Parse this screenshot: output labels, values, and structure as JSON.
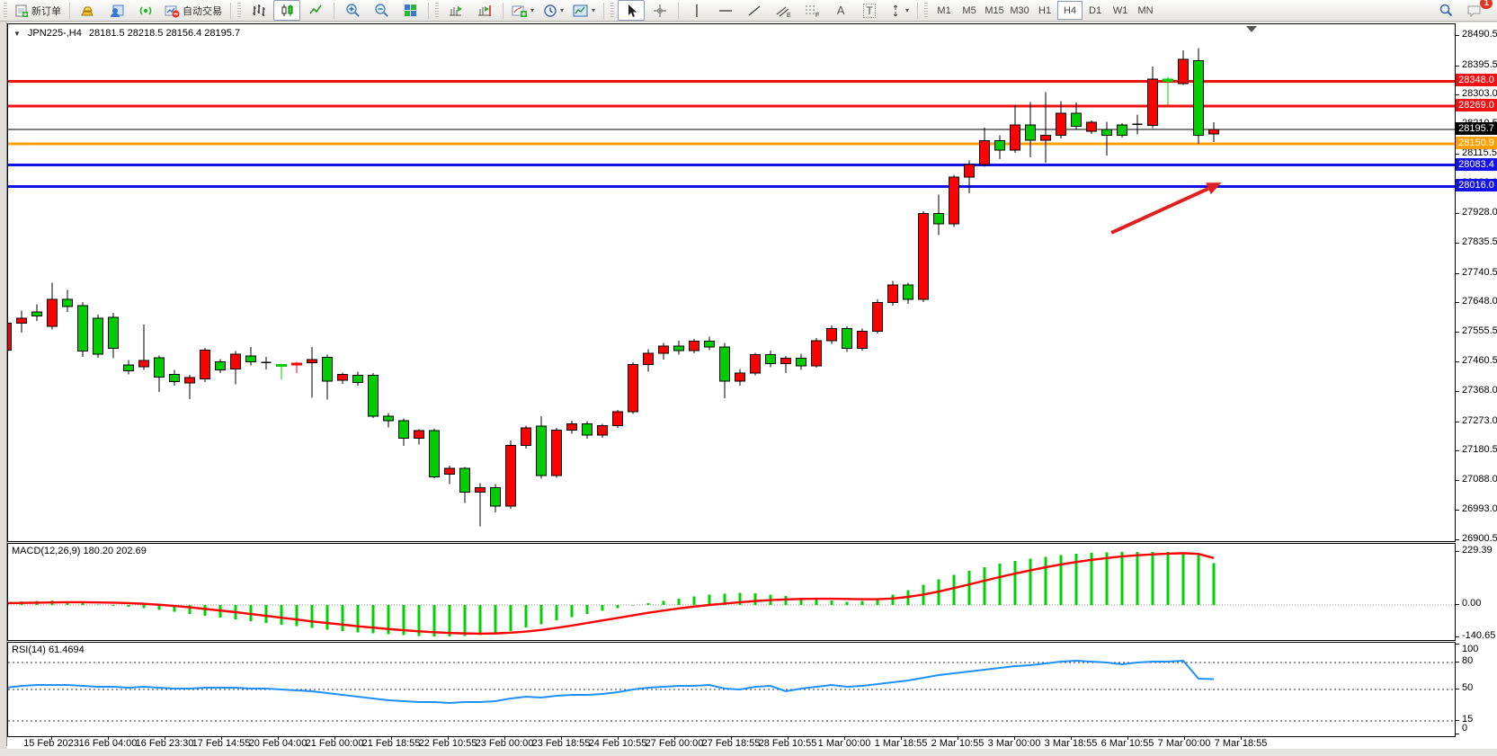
{
  "toolbar": {
    "new_order_label": "新订单",
    "auto_trading_label": "自动交易",
    "timeframes": [
      "M1",
      "M5",
      "M15",
      "M30",
      "H1",
      "H4",
      "D1",
      "W1",
      "MN"
    ],
    "active_timeframe": "H4",
    "chat_badge": "1",
    "tool_letter_text": "A",
    "tool_letter_label": "T"
  },
  "chart": {
    "symbol_period": "JPN225-,H4",
    "ohlc": "28181.5 28218.5 28156.4 28195.7"
  },
  "macd": {
    "label": "MACD(12,26,9) 180.20 202.69"
  },
  "rsi": {
    "label": "RSI(14) 61.4694"
  },
  "chart_data": {
    "type": "candlestick",
    "symbol": "JPN225-",
    "period": "H4",
    "current_price": 28195.7,
    "bull_color": "#ff0000",
    "bear_color": "#00cc00",
    "outline_color": "#000000",
    "price_axis_ticks": [
      28490.5,
      28395.5,
      28303.0,
      28210.5,
      28115.5,
      28023.0,
      27928.0,
      27835.5,
      27740.5,
      27648.0,
      27555.5,
      27460.5,
      27368.0,
      27273.0,
      27180.5,
      27088.0,
      26993.0,
      26900.5
    ],
    "horizontal_lines": [
      {
        "price": 28348.0,
        "label": "28348.0",
        "color": "#ee1111",
        "thickness": 3
      },
      {
        "price": 28269.0,
        "label": "28269.0",
        "color": "#ee1111",
        "thickness": 3
      },
      {
        "price": 28195.7,
        "label": "28195.7",
        "color": "#000000",
        "thickness": 1
      },
      {
        "price": 28150.9,
        "label": "28150.9",
        "color": "#ffa000",
        "thickness": 3
      },
      {
        "price": 28083.4,
        "label": "28083.4",
        "color": "#1212e8",
        "thickness": 3
      },
      {
        "price": 28016.0,
        "label": "28016.0",
        "color": "#1212e8",
        "thickness": 3
      }
    ],
    "arrow_annotation": {
      "color": "#e02020",
      "from": {
        "bar": 72.3,
        "price": 27870
      },
      "to": {
        "bar": 79.5,
        "price": 28028
      }
    },
    "candles_ohlc": [
      [
        27500,
        27600,
        27455,
        27585
      ],
      [
        27585,
        27625,
        27555,
        27600
      ],
      [
        27620,
        27645,
        27592,
        27608
      ],
      [
        27575,
        27713,
        27565,
        27660
      ],
      [
        27660,
        27690,
        27620,
        27637
      ],
      [
        27640,
        27652,
        27478,
        27497
      ],
      [
        27601,
        27612,
        27476,
        27487
      ],
      [
        27604,
        27618,
        27474,
        27505
      ],
      [
        27453,
        27468,
        27424,
        27434
      ],
      [
        27448,
        27580,
        27438,
        27467
      ],
      [
        27476,
        27483,
        27368,
        27415
      ],
      [
        27424,
        27437,
        27388,
        27401
      ],
      [
        27396,
        27422,
        27345,
        27414
      ],
      [
        27409,
        27507,
        27399,
        27500
      ],
      [
        27463,
        27472,
        27428,
        27437
      ],
      [
        27440,
        27497,
        27392,
        27487
      ],
      [
        27481,
        27510,
        27452,
        27463
      ],
      [
        27461,
        27479,
        27439,
        27461
      ],
      [
        27454,
        27457,
        27408,
        27452
      ],
      [
        27456,
        27463,
        27428,
        27459
      ],
      [
        27460,
        27510,
        27350,
        27470
      ],
      [
        27477,
        27486,
        27344,
        27402
      ],
      [
        27405,
        27429,
        27394,
        27424
      ],
      [
        27420,
        27432,
        27388,
        27398
      ],
      [
        27420,
        27428,
        27286,
        27292
      ],
      [
        27292,
        27302,
        27256,
        27278
      ],
      [
        27278,
        27285,
        27198,
        27222
      ],
      [
        27222,
        27250,
        27202,
        27246
      ],
      [
        27246,
        27252,
        27096,
        27100
      ],
      [
        27108,
        27136,
        27078,
        27127
      ],
      [
        27127,
        27132,
        27018,
        27052
      ],
      [
        27052,
        27080,
        26944,
        27066
      ],
      [
        27066,
        27078,
        26988,
        27008
      ],
      [
        27008,
        27215,
        27000,
        27200
      ],
      [
        27200,
        27262,
        27190,
        27255
      ],
      [
        27260,
        27292,
        27094,
        27105
      ],
      [
        27105,
        27255,
        27098,
        27248
      ],
      [
        27248,
        27278,
        27236,
        27268
      ],
      [
        27268,
        27276,
        27220,
        27232
      ],
      [
        27232,
        27268,
        27224,
        27262
      ],
      [
        27262,
        27312,
        27254,
        27305
      ],
      [
        27305,
        27462,
        27298,
        27455
      ],
      [
        27455,
        27502,
        27432,
        27490
      ],
      [
        27490,
        27522,
        27470,
        27512
      ],
      [
        27512,
        27530,
        27486,
        27498
      ],
      [
        27498,
        27535,
        27490,
        27528
      ],
      [
        27528,
        27542,
        27500,
        27510
      ],
      [
        27510,
        27522,
        27348,
        27402
      ],
      [
        27402,
        27440,
        27388,
        27428
      ],
      [
        27428,
        27492,
        27420,
        27485
      ],
      [
        27485,
        27498,
        27446,
        27458
      ],
      [
        27458,
        27482,
        27428,
        27475
      ],
      [
        27475,
        27488,
        27438,
        27450
      ],
      [
        27450,
        27538,
        27444,
        27530
      ],
      [
        27530,
        27578,
        27520,
        27568
      ],
      [
        27568,
        27575,
        27494,
        27505
      ],
      [
        27505,
        27568,
        27498,
        27560
      ],
      [
        27560,
        27660,
        27552,
        27650
      ],
      [
        27650,
        27718,
        27640,
        27705
      ],
      [
        27705,
        27712,
        27646,
        27660
      ],
      [
        27660,
        27938,
        27652,
        27930
      ],
      [
        27930,
        27990,
        27862,
        27898
      ],
      [
        27898,
        28052,
        27888,
        28045
      ],
      [
        28045,
        28098,
        27994,
        28085
      ],
      [
        28085,
        28202,
        28078,
        28160
      ],
      [
        28160,
        28178,
        28102,
        28130
      ],
      [
        28130,
        28272,
        28122,
        28210
      ],
      [
        28210,
        28282,
        28108,
        28162
      ],
      [
        28162,
        28313,
        28091,
        28177
      ],
      [
        28177,
        28285,
        28168,
        28247
      ],
      [
        28247,
        28281,
        28196,
        28205
      ],
      [
        28190,
        28224,
        28182,
        28219
      ],
      [
        28196,
        28220,
        28114,
        28178
      ],
      [
        28210,
        28216,
        28170,
        28177
      ],
      [
        28212,
        28242,
        28180,
        28212
      ],
      [
        28209,
        28394,
        28200,
        28355
      ],
      [
        28355,
        28362,
        28274,
        28348
      ],
      [
        28340,
        28445,
        28336,
        28417
      ],
      [
        28412,
        28452,
        28150,
        28177
      ],
      [
        28181.5,
        28218.5,
        28156.4,
        28195.7
      ]
    ],
    "indicators": {
      "macd": {
        "hist_color": "#00d200",
        "signal_color": "#ff0000",
        "axis_ticks": [
          229.39,
          0.0,
          -140.65
        ],
        "histogram": [
          12,
          16,
          18,
          20,
          15,
          8,
          2,
          -4,
          -8,
          -14,
          -22,
          -30,
          -38,
          -46,
          -54,
          -62,
          -70,
          -78,
          -85,
          -92,
          -99,
          -106,
          -112,
          -118,
          -123,
          -127,
          -131,
          -134,
          -136,
          -136,
          -134,
          -130,
          -123,
          -112,
          -98,
          -83,
          -67,
          -52,
          -38,
          -25,
          -13,
          -2,
          8,
          18,
          28,
          37,
          44,
          49,
          52,
          50,
          45,
          38,
          31,
          25,
          19,
          14,
          17,
          28,
          45,
          65,
          88,
          110,
          130,
          148,
          164,
          178,
          190,
          200,
          208,
          215,
          221,
          225,
          228,
          230,
          230,
          229,
          229,
          228,
          215,
          180
        ],
        "signal": [
          8,
          9,
          10,
          11,
          12,
          12,
          11,
          10,
          8,
          5,
          1,
          -4,
          -10,
          -17,
          -24,
          -31,
          -39,
          -47,
          -55,
          -63,
          -71,
          -78,
          -85,
          -92,
          -98,
          -104,
          -109,
          -114,
          -118,
          -121,
          -123,
          -124,
          -123,
          -120,
          -115,
          -108,
          -99,
          -89,
          -78,
          -67,
          -56,
          -45,
          -34,
          -24,
          -15,
          -7,
          0,
          6,
          12,
          17,
          21,
          24,
          26,
          27,
          27,
          26,
          25,
          25,
          28,
          35,
          45,
          58,
          73,
          89,
          105,
          121,
          136,
          150,
          163,
          175,
          186,
          195,
          203,
          210,
          215,
          219,
          222,
          224,
          221,
          203
        ]
      },
      "rsi": {
        "color": "#1e90ff",
        "levels": [
          80,
          50,
          15
        ],
        "axis_ticks": [
          100,
          80,
          50,
          15,
          0
        ],
        "values": [
          52,
          54,
          55,
          55,
          55,
          54,
          53,
          53,
          52,
          53,
          52,
          51,
          51,
          52,
          52,
          52,
          51,
          51,
          50,
          49,
          48,
          46,
          44,
          42,
          40,
          38,
          37,
          36,
          36,
          35,
          36,
          36,
          37,
          40,
          42,
          41,
          43,
          44,
          44,
          45,
          47,
          50,
          52,
          53,
          54,
          54,
          55,
          51,
          50,
          53,
          54,
          48,
          51,
          53,
          55,
          53,
          54,
          56,
          58,
          60,
          63,
          66,
          68,
          70,
          72,
          74,
          76,
          77,
          79,
          81,
          82,
          81,
          80,
          78,
          80,
          81,
          81,
          82,
          62,
          61.5
        ]
      }
    },
    "time_labels": [
      "15 Feb 2023",
      "16 Feb 04:00",
      "16 Feb 23:30",
      "17 Feb 14:55",
      "20 Feb 04:00",
      "21 Feb 00:00",
      "21 Feb 18:55",
      "22 Feb 10:55",
      "23 Feb 00:00",
      "23 Feb 18:55",
      "24 Feb 10:55",
      "27 Feb 00:00",
      "27 Feb 18:55",
      "28 Feb 10:55",
      "1 Mar 00:00",
      "1 Mar 18:55",
      "2 Mar 10:55",
      "3 Mar 00:00",
      "3 Mar 18:55",
      "6 Mar 10:55",
      "7 Mar 00:00",
      "7 Mar 18:55"
    ]
  }
}
